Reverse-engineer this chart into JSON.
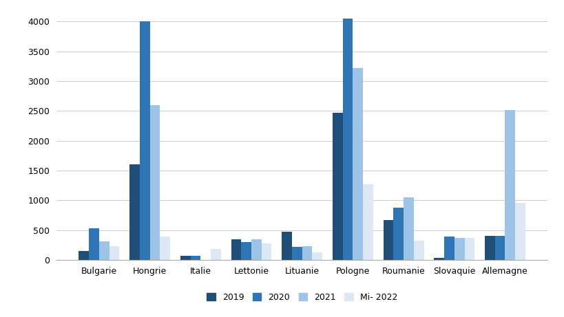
{
  "categories": [
    "Bulgarie",
    "Hongrie",
    "Italie",
    "Lettonie",
    "Lituanie",
    "Pologne",
    "Roumanie",
    "Slovaquie",
    "Allemagne"
  ],
  "series": {
    "2019": [
      150,
      1600,
      70,
      350,
      470,
      2470,
      670,
      40,
      400
    ],
    "2020": [
      530,
      4000,
      70,
      300,
      220,
      4050,
      880,
      390,
      400
    ],
    "2021": [
      310,
      2600,
      0,
      350,
      230,
      3220,
      1050,
      370,
      2510
    ],
    "Mi- 2022": [
      230,
      390,
      180,
      280,
      130,
      1270,
      320,
      370,
      960
    ]
  },
  "colors": {
    "2019": "#1f4e79",
    "2020": "#2e75b6",
    "2021": "#9dc3e6",
    "Mi- 2022": "#dce9f5"
  },
  "legend_labels": [
    "2019",
    "2020",
    "2021",
    "Mi- 2022"
  ],
  "ylim": [
    0,
    4200
  ],
  "yticks": [
    0,
    500,
    1000,
    1500,
    2000,
    2500,
    3000,
    3500,
    4000
  ],
  "background_color": "#ffffff",
  "grid_color": "#cccccc",
  "bar_width": 0.2,
  "figsize": [
    8.2,
    4.61
  ],
  "dpi": 100
}
